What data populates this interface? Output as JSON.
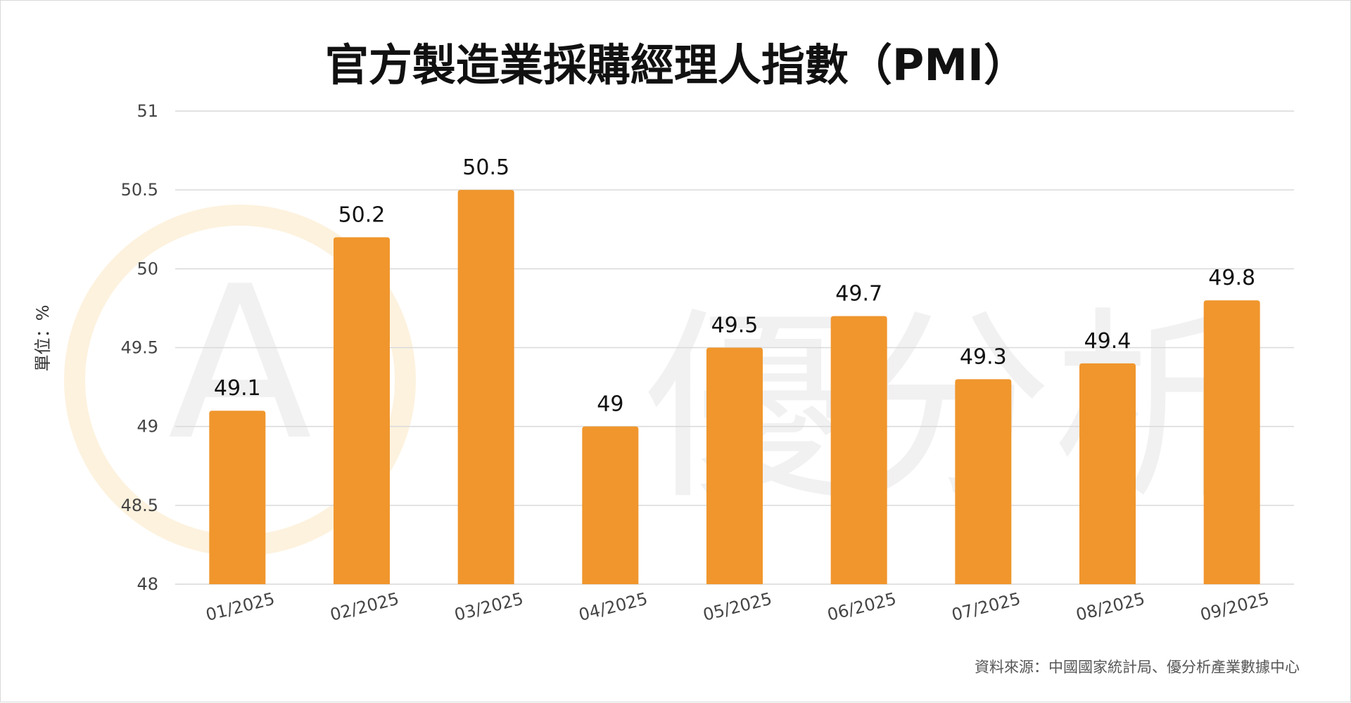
{
  "colors": {
    "bar": "#F0962D",
    "grid": "#D9D9D9",
    "watermark": "#F7C46A"
  },
  "watermark": {
    "logo_letter": "A",
    "text": "優分析"
  },
  "chart_data": {
    "type": "bar",
    "title": "官方製造業採購經理人指數（PMI）",
    "ylabel": "單位：%",
    "xlabel": "",
    "categories": [
      "01/2025",
      "02/2025",
      "03/2025",
      "04/2025",
      "05/2025",
      "06/2025",
      "07/2025",
      "08/2025",
      "09/2025"
    ],
    "values": [
      49.1,
      50.2,
      50.5,
      49,
      49.5,
      49.7,
      49.3,
      49.4,
      49.8
    ],
    "data_labels": [
      "49.1",
      "50.2",
      "50.5",
      "49",
      "49.5",
      "49.7",
      "49.3",
      "49.4",
      "49.8"
    ],
    "ylim": [
      48,
      51
    ],
    "yticks": [
      48,
      48.5,
      49,
      49.5,
      50,
      50.5,
      51
    ],
    "ytick_labels": [
      "48",
      "48.5",
      "49",
      "49.5",
      "50",
      "50.5",
      "51"
    ],
    "grid": true,
    "legend": "none",
    "source": "資料來源：中國國家統計局、優分析產業數據中心"
  }
}
